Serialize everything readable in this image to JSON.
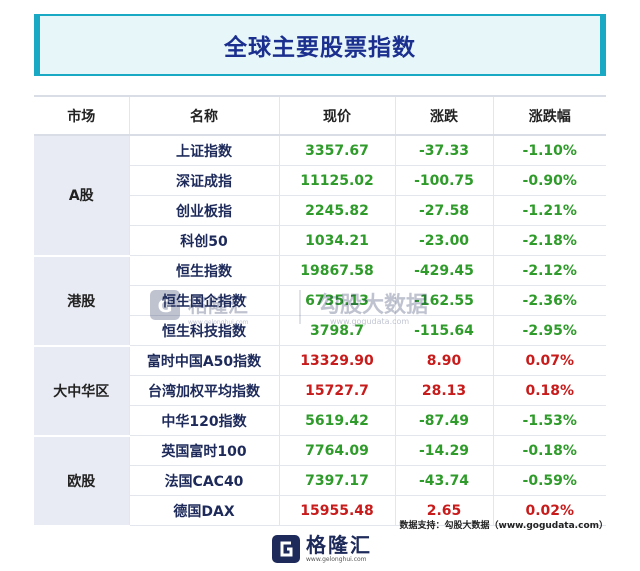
{
  "title": "全球主要股票指数",
  "table": {
    "headers": [
      "市场",
      "名称",
      "现价",
      "涨跌",
      "涨跌幅"
    ],
    "groups": [
      {
        "market": "A股",
        "rows": [
          {
            "name": "上证指数",
            "price": "3357.67",
            "change": "-37.33",
            "pct": "-1.10%"
          },
          {
            "name": "深证成指",
            "price": "11125.02",
            "change": "-100.75",
            "pct": "-0.90%"
          },
          {
            "name": "创业板指",
            "price": "2245.82",
            "change": "-27.58",
            "pct": "-1.21%"
          },
          {
            "name": "科创50",
            "price": "1034.21",
            "change": "-23.00",
            "pct": "-2.18%"
          }
        ]
      },
      {
        "market": "港股",
        "rows": [
          {
            "name": "恒生指数",
            "price": "19867.58",
            "change": "-429.45",
            "pct": "-2.12%"
          },
          {
            "name": "恒生国企指数",
            "price": "6735.13",
            "change": "-162.55",
            "pct": "-2.36%"
          },
          {
            "name": "恒生科技指数",
            "price": "3798.7",
            "change": "-115.64",
            "pct": "-2.95%"
          }
        ]
      },
      {
        "market": "大中华区",
        "rows": [
          {
            "name": "富时中国A50指数",
            "price": "13329.90",
            "change": "8.90",
            "pct": "0.07%"
          },
          {
            "name": "台湾加权平均指数",
            "price": "15727.7",
            "change": "28.13",
            "pct": "0.18%"
          },
          {
            "name": "中华120指数",
            "price": "5619.42",
            "change": "-87.49",
            "pct": "-1.53%"
          }
        ]
      },
      {
        "market": "欧股",
        "rows": [
          {
            "name": "英国富时100",
            "price": "7764.09",
            "change": "-14.29",
            "pct": "-0.18%"
          },
          {
            "name": "法国CAC40",
            "price": "7397.17",
            "change": "-43.74",
            "pct": "-0.59%"
          },
          {
            "name": "德国DAX",
            "price": "15955.48",
            "change": "2.65",
            "pct": "0.02%"
          }
        ]
      }
    ]
  },
  "watermark": {
    "left_text": "格隆汇",
    "left_sub": "www.gelonghui.com",
    "right_text": "勾股大数据",
    "right_sub": "www.gogudata.com"
  },
  "source_note": "数据支持：勾股大数据（www.gogudata.com）",
  "footer": {
    "logo_text": "格隆汇",
    "logo_sub": "www.gelonghui.com"
  },
  "colors": {
    "accent": "#19a9c4",
    "title_text": "#1b2f8f",
    "up": "#c81b1b",
    "down": "#2f9b2a",
    "market_bg": "#e8ebf3"
  }
}
